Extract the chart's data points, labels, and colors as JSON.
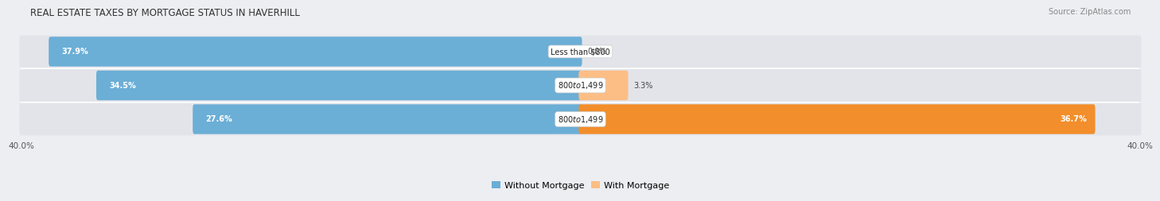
{
  "title": "REAL ESTATE TAXES BY MORTGAGE STATUS IN HAVERHILL",
  "source": "Source: ZipAtlas.com",
  "bars": [
    {
      "label": "Less than $800",
      "without_mortgage": 37.9,
      "with_mortgage": 0.0
    },
    {
      "label": "$800 to $1,499",
      "without_mortgage": 34.5,
      "with_mortgage": 3.3
    },
    {
      "label": "$800 to $1,499",
      "without_mortgage": 27.6,
      "with_mortgage": 36.7
    }
  ],
  "x_max": 40.0,
  "color_without": "#6BAED6",
  "color_with_light": "#FDBE85",
  "color_with_dark": "#F28E2B",
  "bg_color": "#ECEEF2",
  "bar_bg": "#E2E4EA",
  "title_fontsize": 8.5,
  "source_fontsize": 7,
  "bar_label_fontsize": 7,
  "pct_fontsize": 7,
  "tick_fontsize": 7.5,
  "legend_fontsize": 8
}
